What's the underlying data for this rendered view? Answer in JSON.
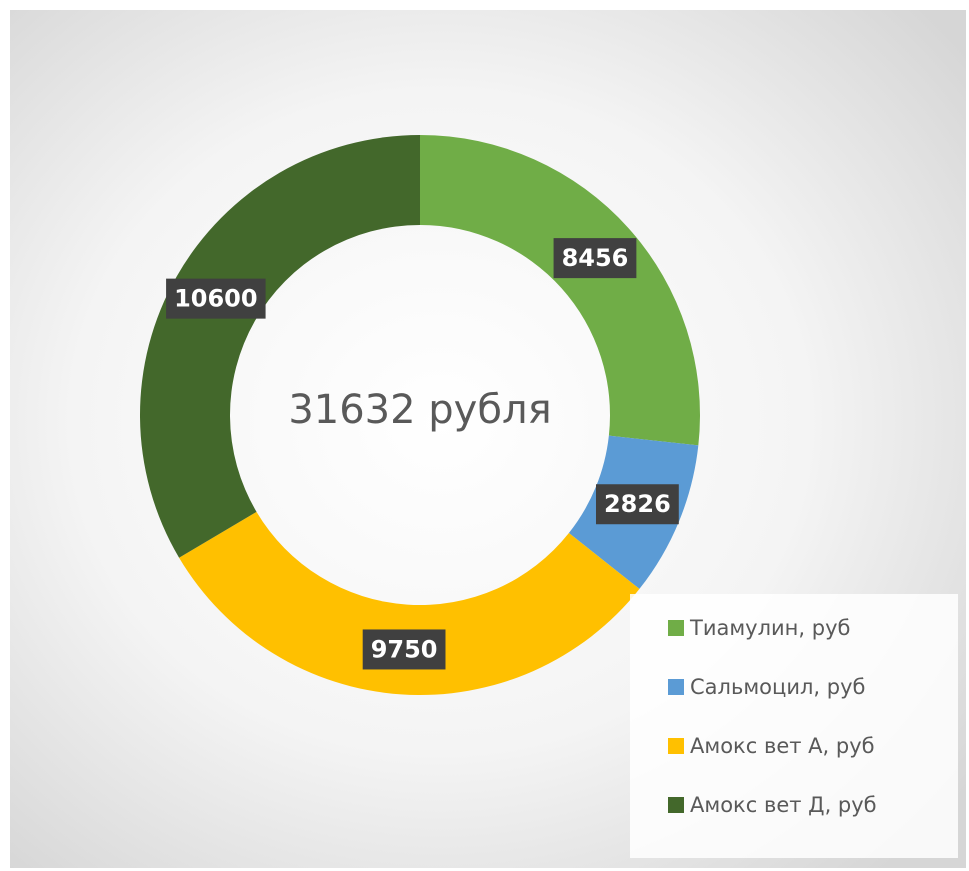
{
  "chart_data": {
    "type": "donut",
    "center_label": "31632 рубля",
    "categories": [
      "Тиамулин, руб",
      "Сальмоцил, руб",
      "Амокс вет А, руб",
      "Амокс вет Д, руб"
    ],
    "values": [
      8456,
      2826,
      9750,
      10600
    ],
    "colors": [
      "#70ad47",
      "#5b9bd5",
      "#ffc000",
      "#43682b"
    ],
    "legend": "bottom-right"
  }
}
